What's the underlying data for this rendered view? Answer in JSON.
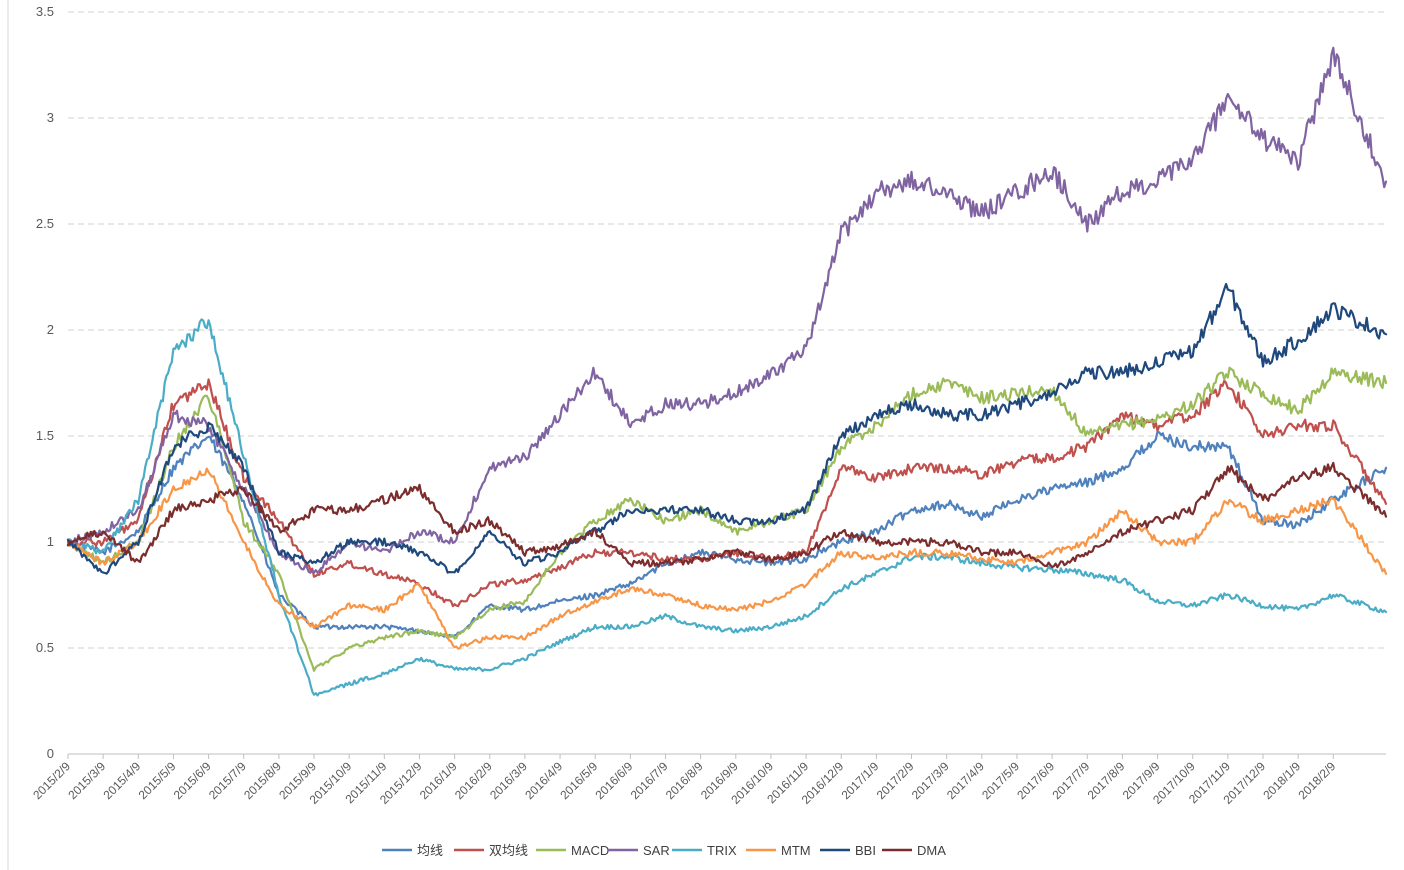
{
  "chart_data": {
    "type": "line",
    "title": "",
    "xlabel": "",
    "ylabel": "",
    "ylim": [
      0,
      3.5
    ],
    "yticks": [
      0,
      0.5,
      1,
      1.5,
      2,
      2.5,
      3,
      3.5
    ],
    "ytick_labels": [
      "0",
      "0.5",
      "1",
      "1.5",
      "2",
      "2.5",
      "3",
      "3.5"
    ],
    "x_labels": [
      "2015/2/9",
      "2015/3/9",
      "2015/4/9",
      "2015/5/9",
      "2015/6/9",
      "2015/7/9",
      "2015/8/9",
      "2015/9/9",
      "2015/10/9",
      "2015/11/9",
      "2015/12/9",
      "2016/1/9",
      "2016/2/9",
      "2016/3/9",
      "2016/4/9",
      "2016/5/9",
      "2016/6/9",
      "2016/7/9",
      "2016/8/9",
      "2016/9/9",
      "2016/10/9",
      "2016/11/9",
      "2016/12/9",
      "2017/1/9",
      "2017/2/9",
      "2017/3/9",
      "2017/4/9",
      "2017/5/9",
      "2017/6/9",
      "2017/7/9",
      "2017/8/9",
      "2017/9/9",
      "2017/10/9",
      "2017/11/9",
      "2017/12/9",
      "2018/1/9",
      "2018/2/9"
    ],
    "x_end": 37.5,
    "grid": true,
    "legend_position": "bottom",
    "series": [
      {
        "name": "均线",
        "color": "#4F81BD",
        "x": [
          0,
          1,
          2,
          3,
          4,
          5,
          6,
          7,
          8,
          9,
          10,
          11,
          12,
          13,
          14,
          15,
          16,
          17,
          18,
          19,
          20,
          21,
          22,
          23,
          24,
          25,
          26,
          27,
          28,
          29,
          30,
          31,
          32,
          33,
          34,
          35,
          36,
          37.5
        ],
        "y": [
          1.0,
          0.95,
          1.05,
          1.35,
          1.5,
          1.2,
          0.75,
          0.6,
          0.6,
          0.6,
          0.58,
          0.55,
          0.7,
          0.68,
          0.72,
          0.75,
          0.8,
          0.9,
          0.95,
          0.92,
          0.9,
          0.92,
          1.0,
          1.05,
          1.15,
          1.18,
          1.12,
          1.2,
          1.25,
          1.28,
          1.35,
          1.5,
          1.45,
          1.45,
          1.1,
          1.08,
          1.2,
          1.35
        ]
      },
      {
        "name": "双均线",
        "color": "#C0504D",
        "x": [
          0,
          1,
          2,
          3,
          4,
          5,
          6,
          7,
          8,
          9,
          10,
          11,
          12,
          13,
          14,
          15,
          16,
          17,
          18,
          19,
          20,
          21,
          22,
          23,
          24,
          25,
          26,
          27,
          28,
          29,
          30,
          31,
          32,
          33,
          34,
          35,
          36,
          37.5
        ],
        "y": [
          1.0,
          1.0,
          1.1,
          1.65,
          1.75,
          1.3,
          1.1,
          0.85,
          0.9,
          0.85,
          0.8,
          0.7,
          0.8,
          0.82,
          0.88,
          0.95,
          0.95,
          0.92,
          0.92,
          0.95,
          0.92,
          0.95,
          1.35,
          1.3,
          1.35,
          1.35,
          1.32,
          1.38,
          1.4,
          1.45,
          1.6,
          1.55,
          1.6,
          1.75,
          1.5,
          1.55,
          1.55,
          1.18
        ]
      },
      {
        "name": "MACD",
        "color": "#9BBB59",
        "x": [
          0,
          1,
          2,
          3,
          4,
          5,
          6,
          7,
          8,
          9,
          10,
          11,
          12,
          13,
          14,
          15,
          16,
          17,
          18,
          19,
          20,
          21,
          22,
          23,
          24,
          25,
          26,
          27,
          28,
          29,
          30,
          31,
          32,
          33,
          34,
          35,
          36,
          37.5
        ],
        "y": [
          1.0,
          0.9,
          1.0,
          1.45,
          1.7,
          1.1,
          0.85,
          0.4,
          0.5,
          0.55,
          0.58,
          0.55,
          0.68,
          0.72,
          0.95,
          1.1,
          1.2,
          1.1,
          1.15,
          1.05,
          1.1,
          1.15,
          1.45,
          1.55,
          1.7,
          1.75,
          1.68,
          1.7,
          1.72,
          1.5,
          1.55,
          1.58,
          1.65,
          1.8,
          1.7,
          1.62,
          1.8,
          1.75
        ]
      },
      {
        "name": "SAR",
        "color": "#8064A2",
        "x": [
          0,
          1,
          2,
          3,
          4,
          5,
          6,
          7,
          8,
          9,
          10,
          11,
          12,
          13,
          14,
          15,
          16,
          17,
          18,
          19,
          20,
          21,
          22,
          23,
          24,
          25,
          26,
          27,
          28,
          29,
          30,
          31,
          32,
          33,
          34,
          35,
          36,
          37.5
        ],
        "y": [
          1.0,
          1.05,
          1.15,
          1.6,
          1.55,
          1.25,
          0.95,
          0.85,
          1.0,
          0.95,
          1.05,
          1.0,
          1.35,
          1.4,
          1.6,
          1.8,
          1.55,
          1.65,
          1.65,
          1.7,
          1.8,
          1.9,
          2.45,
          2.65,
          2.7,
          2.65,
          2.55,
          2.65,
          2.75,
          2.5,
          2.65,
          2.7,
          2.8,
          3.1,
          2.9,
          2.8,
          3.3,
          2.7
        ]
      },
      {
        "name": "TRIX",
        "color": "#4BACC6",
        "x": [
          0,
          1,
          2,
          3,
          4,
          5,
          6,
          7,
          8,
          9,
          10,
          11,
          12,
          13,
          14,
          15,
          16,
          17,
          18,
          19,
          20,
          21,
          22,
          23,
          24,
          25,
          26,
          27,
          28,
          29,
          30,
          31,
          32,
          33,
          34,
          35,
          36,
          37.5
        ],
        "y": [
          1.0,
          0.95,
          1.2,
          1.9,
          2.05,
          1.4,
          0.75,
          0.28,
          0.33,
          0.38,
          0.45,
          0.4,
          0.4,
          0.45,
          0.53,
          0.6,
          0.6,
          0.65,
          0.6,
          0.58,
          0.6,
          0.65,
          0.78,
          0.85,
          0.93,
          0.93,
          0.9,
          0.88,
          0.87,
          0.85,
          0.82,
          0.72,
          0.7,
          0.75,
          0.7,
          0.68,
          0.75,
          0.67
        ]
      },
      {
        "name": "MTM",
        "color": "#F79646",
        "x": [
          0,
          1,
          2,
          3,
          4,
          5,
          6,
          7,
          8,
          9,
          10,
          11,
          12,
          13,
          14,
          15,
          16,
          17,
          18,
          19,
          20,
          21,
          22,
          23,
          24,
          25,
          26,
          27,
          28,
          29,
          30,
          31,
          32,
          33,
          34,
          35,
          36,
          37.5
        ],
        "y": [
          1.0,
          0.9,
          1.0,
          1.25,
          1.35,
          1.0,
          0.7,
          0.6,
          0.7,
          0.68,
          0.8,
          0.5,
          0.55,
          0.55,
          0.65,
          0.72,
          0.78,
          0.75,
          0.7,
          0.68,
          0.72,
          0.8,
          0.95,
          0.92,
          0.95,
          0.95,
          0.92,
          0.9,
          0.95,
          1.0,
          1.15,
          1.0,
          1.0,
          1.2,
          1.1,
          1.15,
          1.2,
          0.85
        ]
      },
      {
        "name": "BBI",
        "color": "#1F497D",
        "x": [
          0,
          1,
          2,
          3,
          4,
          5,
          6,
          7,
          8,
          9,
          10,
          11,
          12,
          13,
          14,
          15,
          16,
          17,
          18,
          19,
          20,
          21,
          22,
          23,
          24,
          25,
          26,
          27,
          28,
          29,
          30,
          31,
          32,
          33,
          34,
          35,
          36,
          37.5
        ],
        "y": [
          1.0,
          0.85,
          1.0,
          1.45,
          1.55,
          1.35,
          0.95,
          0.9,
          1.0,
          1.0,
          0.95,
          0.85,
          1.05,
          0.9,
          0.95,
          1.05,
          1.15,
          1.15,
          1.15,
          1.1,
          1.1,
          1.15,
          1.5,
          1.6,
          1.65,
          1.6,
          1.6,
          1.65,
          1.7,
          1.8,
          1.8,
          1.85,
          1.9,
          2.2,
          1.85,
          1.95,
          2.1,
          1.98
        ]
      },
      {
        "name": "DMA",
        "color": "#7B2C2C",
        "x": [
          0,
          1,
          2,
          3,
          4,
          5,
          6,
          7,
          8,
          9,
          10,
          11,
          12,
          13,
          14,
          15,
          16,
          17,
          18,
          19,
          20,
          21,
          22,
          23,
          24,
          25,
          26,
          27,
          28,
          29,
          30,
          31,
          32,
          33,
          34,
          35,
          36,
          37.5
        ],
        "y": [
          1.0,
          1.05,
          0.9,
          1.15,
          1.2,
          1.25,
          1.05,
          1.15,
          1.15,
          1.2,
          1.25,
          1.05,
          1.1,
          0.95,
          0.98,
          1.05,
          0.9,
          0.9,
          0.92,
          0.95,
          0.92,
          0.95,
          1.05,
          1.0,
          1.0,
          1.0,
          0.95,
          0.95,
          0.88,
          0.95,
          1.05,
          1.1,
          1.15,
          1.35,
          1.2,
          1.3,
          1.35,
          1.12
        ]
      }
    ]
  }
}
